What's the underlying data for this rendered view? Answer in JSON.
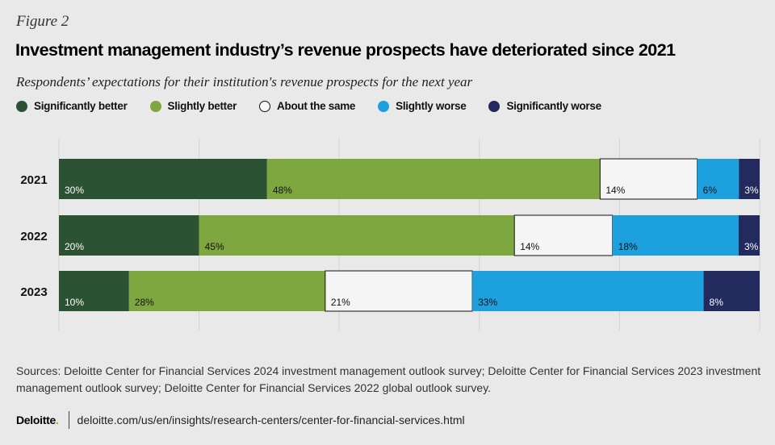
{
  "figure_label": "Figure 2",
  "title": "Investment management industry’s revenue prospects have deteriorated since 2021",
  "subtitle": "Respondents’ expectations for their institution's revenue prospects for the next year",
  "sources": "Sources: Deloitte Center for Financial Services 2024 investment management outlook survey; Deloitte Center for Financial Services 2023 investment management outlook survey; Deloitte Center for Financial Services 2022 global outlook survey.",
  "footer": {
    "brand": "Deloitte",
    "brand_dot": ".",
    "url": "deloitte.com/us/en/insights/research-centers/center-for-financial-services.html"
  },
  "colors": {
    "significantly_better": "#2c5234",
    "slightly_better": "#7fa73f",
    "about_the_same": "#f5f5f5",
    "slightly_worse": "#1ca0de",
    "significantly_worse": "#232a5e",
    "gridline": "#d3d3d3"
  },
  "chart_data": {
    "type": "bar",
    "orientation": "horizontal",
    "stacked": true,
    "categories": [
      "2021",
      "2022",
      "2023"
    ],
    "series": [
      {
        "name": "Significantly better",
        "key": "significantly_better",
        "values": [
          30,
          20,
          10
        ],
        "labels": [
          "30%",
          "20%",
          "10%"
        ]
      },
      {
        "name": "Slightly better",
        "key": "slightly_better",
        "values": [
          48,
          45,
          28
        ],
        "labels": [
          "48%",
          "45%",
          "28%"
        ]
      },
      {
        "name": "About the same",
        "key": "about_the_same",
        "values": [
          14,
          14,
          21
        ],
        "labels": [
          "14%",
          "14%",
          "21%"
        ]
      },
      {
        "name": "Slightly worse",
        "key": "slightly_worse",
        "values": [
          6,
          18,
          33
        ],
        "labels": [
          "6%",
          "18%",
          "33%"
        ]
      },
      {
        "name": "Significantly worse",
        "key": "significantly_worse",
        "values": [
          3,
          3,
          8
        ],
        "labels": [
          "3%",
          "3%",
          "8%"
        ]
      }
    ],
    "xlim": [
      0,
      100
    ],
    "grid": true,
    "legend": "top-left"
  }
}
